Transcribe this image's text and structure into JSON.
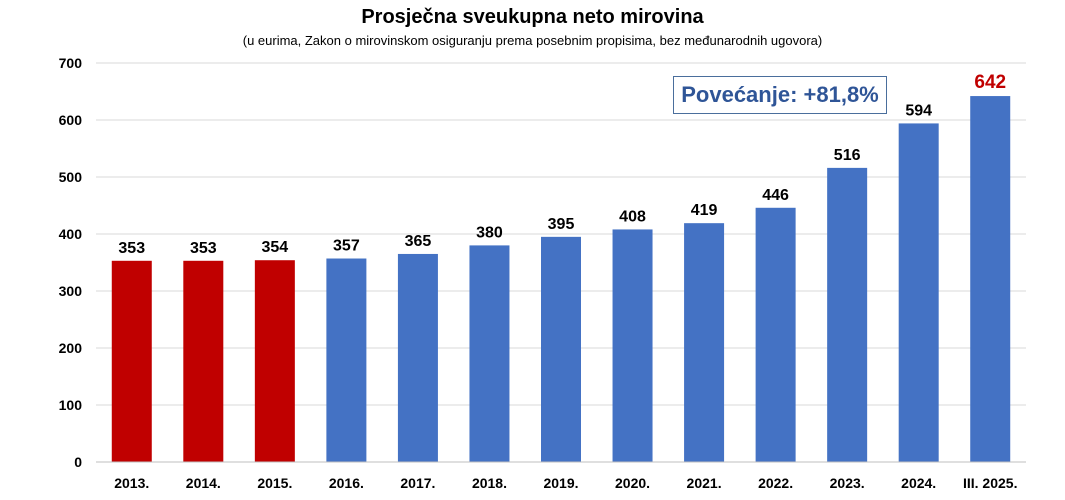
{
  "chart_data": {
    "type": "bar",
    "title": "Prosječna sveukupna neto mirovina",
    "subtitle": "(u eurima, Zakon o mirovinskom osiguranju prema posebnim propisima, bez međunarodnih ugovora)",
    "categories": [
      "2013.",
      "2014.",
      "2015.",
      "2016.",
      "2017.",
      "2018.",
      "2019.",
      "2020.",
      "2021.",
      "2022.",
      "2023.",
      "2024.",
      "III. 2025."
    ],
    "values": [
      353,
      353,
      354,
      357,
      365,
      380,
      395,
      408,
      419,
      446,
      516,
      594,
      642
    ],
    "bar_colors": [
      "#c00000",
      "#c00000",
      "#c00000",
      "#4472c4",
      "#4472c4",
      "#4472c4",
      "#4472c4",
      "#4472c4",
      "#4472c4",
      "#4472c4",
      "#4472c4",
      "#4472c4",
      "#4472c4"
    ],
    "label_colors": [
      "#000000",
      "#000000",
      "#000000",
      "#000000",
      "#000000",
      "#000000",
      "#000000",
      "#000000",
      "#000000",
      "#000000",
      "#000000",
      "#000000",
      "#c00000"
    ],
    "ylim": [
      0,
      700
    ],
    "yticks": [
      0,
      100,
      200,
      300,
      400,
      500,
      600,
      700
    ],
    "grid": true,
    "annotation": "Povećanje: +81,8%"
  }
}
